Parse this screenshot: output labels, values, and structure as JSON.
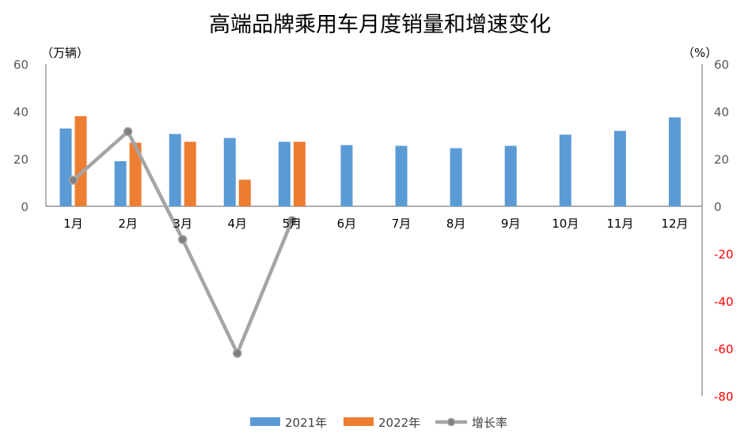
{
  "chart_data": {
    "type": "bar",
    "title": "高端品牌乘用车月度销量和增速变化",
    "left_unit": "（万辆）",
    "right_unit": "（%）",
    "categories": [
      "1月",
      "2月",
      "3月",
      "4月",
      "5月",
      "6月",
      "7月",
      "8月",
      "9月",
      "10月",
      "11月",
      "12月"
    ],
    "series": [
      {
        "name": "2021年",
        "type": "bar",
        "axis": "left",
        "color": "#5B9BD5",
        "values": [
          32.8,
          19.0,
          30.5,
          28.8,
          27.2,
          25.8,
          25.5,
          24.5,
          25.5,
          30.2,
          31.8,
          37.5
        ]
      },
      {
        "name": "2022年",
        "type": "bar",
        "axis": "left",
        "color": "#ED7D31",
        "values": [
          38.0,
          26.8,
          27.2,
          11.2,
          27.2,
          null,
          null,
          null,
          null,
          null,
          null,
          null
        ]
      },
      {
        "name": "增长率",
        "type": "line",
        "axis": "right",
        "color": "#A5A5A5",
        "values": [
          11.0,
          31.5,
          -14.0,
          -62.0,
          -6.0,
          null,
          null,
          null,
          null,
          null,
          null,
          null
        ]
      }
    ],
    "left_axis": {
      "min": 0,
      "max": 60,
      "ticks": [
        "0",
        "20",
        "40",
        "60"
      ]
    },
    "right_axis": {
      "min": -80,
      "max": 60,
      "ticks": [
        "60",
        "40",
        "20",
        "0",
        "-20",
        "-40",
        "-60",
        "-80"
      ],
      "negative_color": "#FF0000"
    },
    "legend_position": "bottom",
    "grid": false
  }
}
